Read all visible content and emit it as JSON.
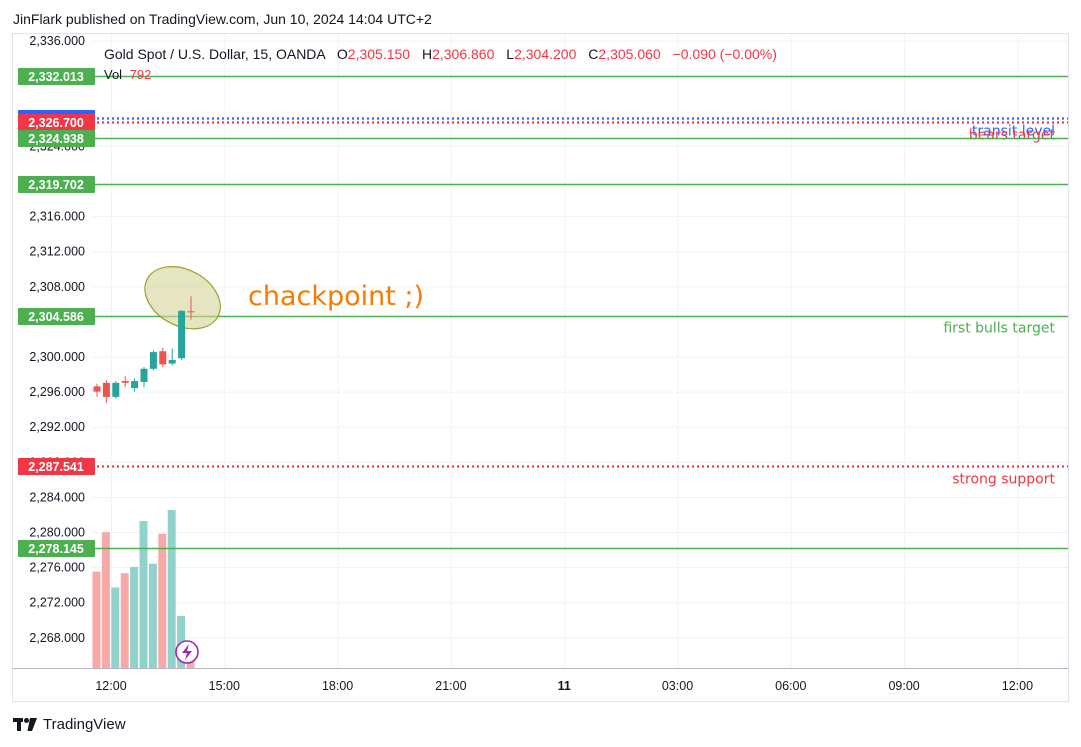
{
  "header": {
    "published": "JinFlark published on TradingView.com, Jun 10, 2024 14:04 UTC+2"
  },
  "legend": {
    "symbol": "Gold Spot / U.S. Dollar, 15, OANDA",
    "o_label": "O",
    "o_value": "2,305.150",
    "h_label": "H",
    "h_value": "2,306.860",
    "l_label": "L",
    "l_value": "2,304.200",
    "c_label": "C",
    "c_value": "2,305.060",
    "change": "−0.090 (−0.00%)",
    "vol_label": "Vol",
    "vol_value": "792"
  },
  "footer": {
    "brand": "TradingView"
  },
  "annotation": {
    "text": "chackpoint ;)"
  },
  "colors": {
    "bull": "#26a69a",
    "bear": "#ef5350",
    "bull_vol": "#92d2cc",
    "bear_vol": "#f7a9a7",
    "level_green": "#4caf50",
    "level_red": "#f23645",
    "label_blue": "#2962ff",
    "annotation_orange": "#f57c00",
    "ellipse_fill": "#d4d49a",
    "ellipse_stroke": "#9e9d24"
  },
  "chart_data": {
    "type": "candlestick",
    "price_ticks": [
      "2,336.000",
      "2,316.000",
      "2,312.000",
      "2,308.000",
      "2,300.000",
      "2,296.000",
      "2,292.000",
      "2,284.000",
      "2,280.000",
      "2,276.000",
      "2,272.000",
      "2,268.000"
    ],
    "price_tick_values": [
      2336,
      2316,
      2312,
      2308,
      2300,
      2296,
      2292,
      2284,
      2280,
      2276,
      2272,
      2268
    ],
    "partially_hidden_ticks": [
      {
        "label": "2,324.000",
        "value": 2324
      },
      {
        "label": "2,288.000",
        "value": 2288
      }
    ],
    "time_ticks": [
      {
        "label": "12:00",
        "bold": false
      },
      {
        "label": "15:00",
        "bold": false
      },
      {
        "label": "18:00",
        "bold": false
      },
      {
        "label": "21:00",
        "bold": false
      },
      {
        "label": "11",
        "bold": true
      },
      {
        "label": "03:00",
        "bold": false
      },
      {
        "label": "06:00",
        "bold": false
      },
      {
        "label": "09:00",
        "bold": false
      },
      {
        "label": "12:00",
        "bold": false
      }
    ],
    "ylim": [
      2264.5,
      2336.3
    ],
    "levels": [
      {
        "price": 2332.013,
        "label": "2,332.013",
        "color": "green",
        "style": "solid",
        "text": ""
      },
      {
        "price": 2327.183,
        "label": "2,327.183",
        "color": "blue",
        "style": "dotted",
        "text": "transit level"
      },
      {
        "price": 2326.7,
        "label": "2,326.700",
        "color": "red",
        "style": "dotted",
        "text": "bears target"
      },
      {
        "price": 2324.938,
        "label": "2,324.938",
        "color": "green",
        "style": "solid",
        "text": ""
      },
      {
        "price": 2319.702,
        "label": "2,319.702",
        "color": "green",
        "style": "solid",
        "text": ""
      },
      {
        "price": 2304.586,
        "label": "2,304.586",
        "color": "green",
        "style": "solid",
        "text": "first bulls target"
      },
      {
        "price": 2287.541,
        "label": "2,287.541",
        "color": "red",
        "style": "dotted",
        "text": "strong support"
      },
      {
        "price": 2278.145,
        "label": "2,278.145",
        "color": "green",
        "style": "solid",
        "text": ""
      }
    ],
    "candles": [
      {
        "open": 2296.6,
        "high": 2296.9,
        "low": 2295.4,
        "close": 2296.0
      },
      {
        "open": 2297.0,
        "high": 2297.3,
        "low": 2294.7,
        "close": 2295.4
      },
      {
        "open": 2295.4,
        "high": 2297.2,
        "low": 2295.2,
        "close": 2297.0
      },
      {
        "open": 2297.2,
        "high": 2297.8,
        "low": 2296.5,
        "close": 2297.0
      },
      {
        "open": 2296.4,
        "high": 2297.5,
        "low": 2296.0,
        "close": 2297.2
      },
      {
        "open": 2297.1,
        "high": 2298.8,
        "low": 2296.5,
        "close": 2298.6
      },
      {
        "open": 2298.6,
        "high": 2300.7,
        "low": 2298.4,
        "close": 2300.5
      },
      {
        "open": 2300.6,
        "high": 2301.0,
        "low": 2298.8,
        "close": 2299.1
      },
      {
        "open": 2299.2,
        "high": 2300.9,
        "low": 2299.0,
        "close": 2299.6
      },
      {
        "open": 2299.8,
        "high": 2305.3,
        "low": 2299.6,
        "close": 2305.2
      },
      {
        "open": 2305.15,
        "high": 2306.86,
        "low": 2304.2,
        "close": 2305.06
      }
    ],
    "volume": {
      "max": 100,
      "values": [
        61,
        86,
        51,
        60,
        64,
        93,
        66,
        85,
        100,
        33,
        8
      ]
    }
  }
}
